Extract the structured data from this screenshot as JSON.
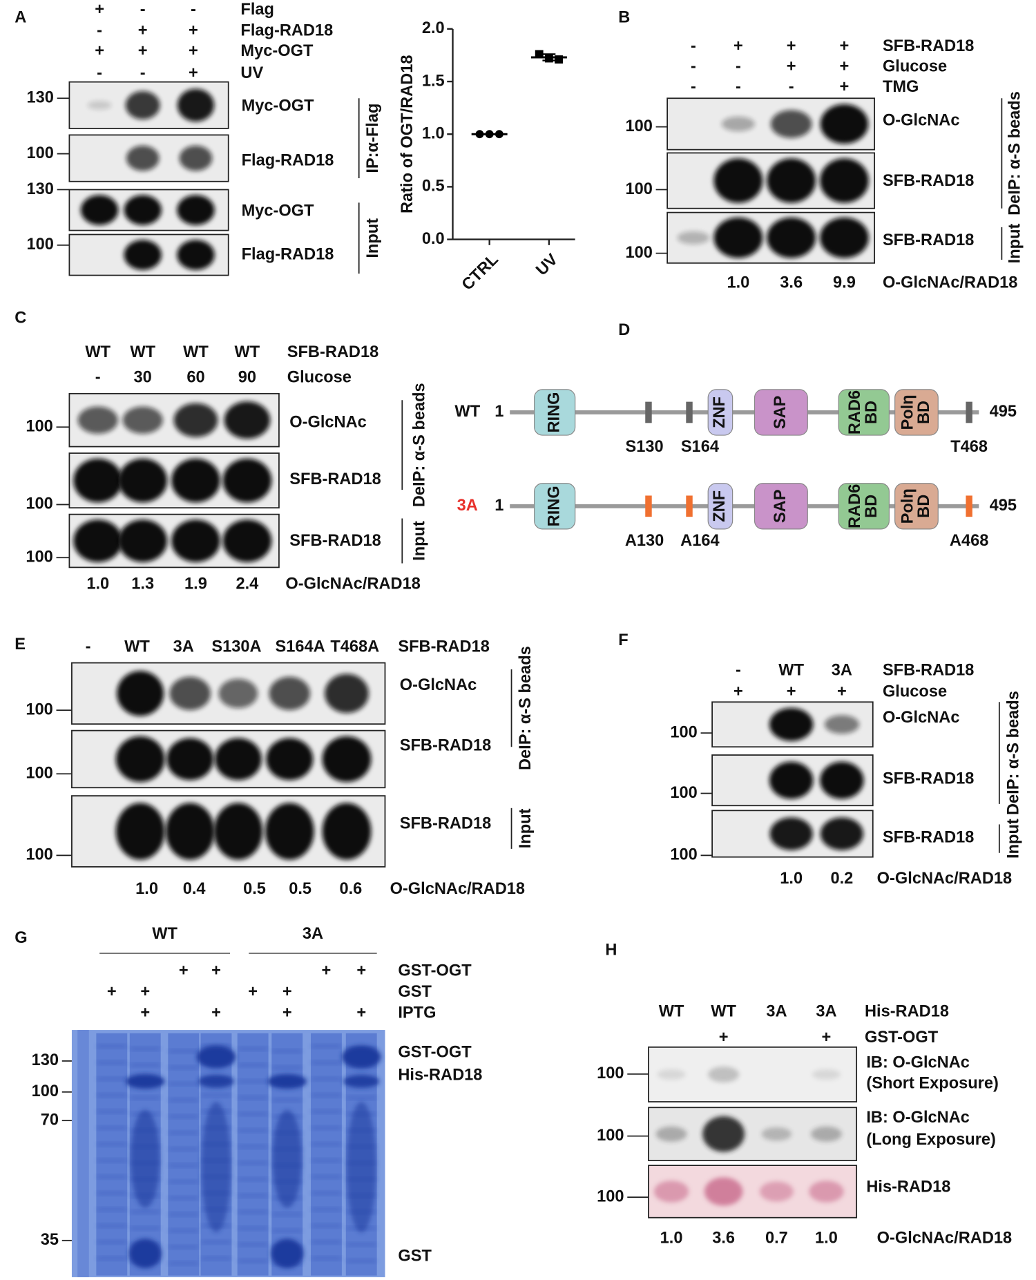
{
  "chart_data": {
    "type": "scatter",
    "ylabel": "Ratio of OGT/RAD18",
    "categories": [
      "CTRL",
      "UV"
    ],
    "values": [
      [
        1.0,
        1.0,
        1.0
      ],
      [
        1.76,
        1.72,
        1.71
      ]
    ],
    "means": [
      1.0,
      1.73
    ],
    "errors": [
      0.0,
      0.03
    ],
    "color": "#000000",
    "ylim": [
      0,
      2
    ],
    "yticks": [
      {
        "value": 0,
        "label": "0.0"
      },
      {
        "value": 0.5,
        "label": "0.5"
      },
      {
        "value": 1,
        "label": "1.0"
      },
      {
        "value": 1.5,
        "label": "1.5"
      },
      {
        "value": 2,
        "label": "2.0"
      }
    ]
  },
  "panels": {
    "A": {
      "letter": "A",
      "conditions": [
        {
          "name": "Flag",
          "signs": [
            "+",
            "-",
            "-"
          ]
        },
        {
          "name": "Flag-RAD18",
          "signs": [
            "-",
            "+",
            "+"
          ]
        },
        {
          "name": "Myc-OGT",
          "signs": [
            "+",
            "+",
            "+"
          ]
        },
        {
          "name": "UV",
          "signs": [
            "-",
            "-",
            "+"
          ]
        }
      ],
      "mw": [
        130,
        100,
        130,
        100
      ],
      "blots": [
        [
          "Myc-OGT"
        ],
        [
          "Flag-RAD18"
        ],
        [
          "Myc-OGT"
        ],
        [
          "Flag-RAD18"
        ]
      ],
      "groups": [
        "IP:α-Flag",
        "Input"
      ]
    },
    "B": {
      "letter": "B",
      "conditions": [
        {
          "name": "SFB-RAD18",
          "signs": [
            "-",
            "+",
            "+",
            "+"
          ]
        },
        {
          "name": "Glucose",
          "signs": [
            "-",
            "-",
            "+",
            "+"
          ]
        },
        {
          "name": "TMG",
          "signs": [
            "-",
            "-",
            "-",
            "+"
          ]
        }
      ],
      "mw": [
        100,
        100,
        100
      ],
      "blots": [
        [
          "O-GlcNAc"
        ],
        [
          "SFB-RAD18"
        ],
        [
          "SFB-RAD18"
        ]
      ],
      "groups": [
        "DeIP: α-S beads",
        "Input"
      ],
      "ratio_label": "O-GlcNAc/RAD18",
      "ratios": [
        null,
        "1.0",
        "3.6",
        "9.9"
      ]
    },
    "C": {
      "letter": "C",
      "conditions": [
        {
          "name": "SFB-RAD18",
          "signs": [
            "WT",
            "WT",
            "WT",
            "WT"
          ]
        },
        {
          "name": "Glucose",
          "signs": [
            "-",
            "30",
            "60",
            "90"
          ]
        }
      ],
      "mw": [
        100,
        100,
        100
      ],
      "blots": [
        [
          "O-GlcNAc"
        ],
        [
          "SFB-RAD18"
        ],
        [
          "SFB-RAD18"
        ]
      ],
      "groups": [
        "DeIP: α-S beads",
        "Input"
      ],
      "ratio_label": "O-GlcNAc/RAD18",
      "ratios": [
        "1.0",
        "1.3",
        "1.9",
        "2.4"
      ]
    },
    "D": {
      "letter": "D",
      "domains": [
        [
          "RING"
        ],
        [
          "ZNF"
        ],
        [
          "SAP"
        ],
        [
          "RAD6",
          "BD"
        ],
        [
          "Polη",
          "BD"
        ]
      ],
      "constructs": [
        {
          "name": "WT",
          "start": 1,
          "end": 495,
          "sites": [
            "S130",
            "S164",
            "T468"
          ]
        },
        {
          "name": "3A",
          "start": 1,
          "end": 495,
          "sites": [
            "A130",
            "A164",
            "A468"
          ]
        }
      ]
    },
    "E": {
      "letter": "E",
      "conditions": [
        {
          "name": "SFB-RAD18",
          "signs": [
            "-",
            "WT",
            "3A",
            "S130A",
            "S164A",
            "T468A"
          ]
        }
      ],
      "mw": [
        100,
        100,
        100
      ],
      "blots": [
        [
          "O-GlcNAc"
        ],
        [
          "SFB-RAD18"
        ],
        [
          "SFB-RAD18"
        ]
      ],
      "groups": [
        "DeIP: α-S beads",
        "Input"
      ],
      "ratio_label": "O-GlcNAc/RAD18",
      "ratios": [
        null,
        "1.0",
        "0.4",
        "0.5",
        "0.5",
        "0.6"
      ]
    },
    "F": {
      "letter": "F",
      "conditions": [
        {
          "name": "SFB-RAD18",
          "signs": [
            "-",
            "WT",
            "3A"
          ]
        },
        {
          "name": "Glucose",
          "signs": [
            "+",
            "+",
            "+"
          ]
        }
      ],
      "mw": [
        100,
        100,
        100
      ],
      "blots": [
        [
          "O-GlcNAc"
        ],
        [
          "SFB-RAD18"
        ],
        [
          "SFB-RAD18"
        ]
      ],
      "groups": [
        "DeIP: α-S beads",
        "Input"
      ],
      "ratio_label": "O-GlcNAc/RAD18",
      "ratios": [
        null,
        "1.0",
        "0.2"
      ]
    },
    "G": {
      "letter": "G",
      "groups": [
        "WT",
        "3A"
      ],
      "conditions": [
        {
          "name": "GST-OGT",
          "signs": [
            null,
            null,
            "+",
            "+",
            null,
            null,
            "+",
            "+"
          ]
        },
        {
          "name": "GST",
          "signs": [
            "+",
            "+",
            null,
            null,
            "+",
            "+",
            null,
            null
          ]
        },
        {
          "name": "IPTG",
          "signs": [
            null,
            "+",
            null,
            "+",
            null,
            "+",
            null,
            "+"
          ]
        }
      ],
      "mw": [
        130,
        100,
        70,
        35
      ],
      "bands": [
        "GST-OGT",
        "His-RAD18",
        "GST"
      ]
    },
    "H": {
      "letter": "H",
      "conditions": [
        {
          "name": "His-RAD18",
          "signs": [
            "WT",
            "WT",
            "3A",
            "3A"
          ]
        },
        {
          "name": "GST-OGT",
          "signs": [
            null,
            "+",
            null,
            "+"
          ]
        }
      ],
      "mw": [
        100,
        100,
        100
      ],
      "blots": [
        [
          "IB: O-GlcNAc",
          "(Short Exposure)"
        ],
        [
          "IB: O-GlcNAc",
          "(Long Exposure)"
        ],
        [
          "His-RAD18"
        ]
      ],
      "ratio_label": "O-GlcNAc/RAD18",
      "ratios": [
        "1.0",
        "3.6",
        "0.7",
        "1.0"
      ]
    }
  }
}
